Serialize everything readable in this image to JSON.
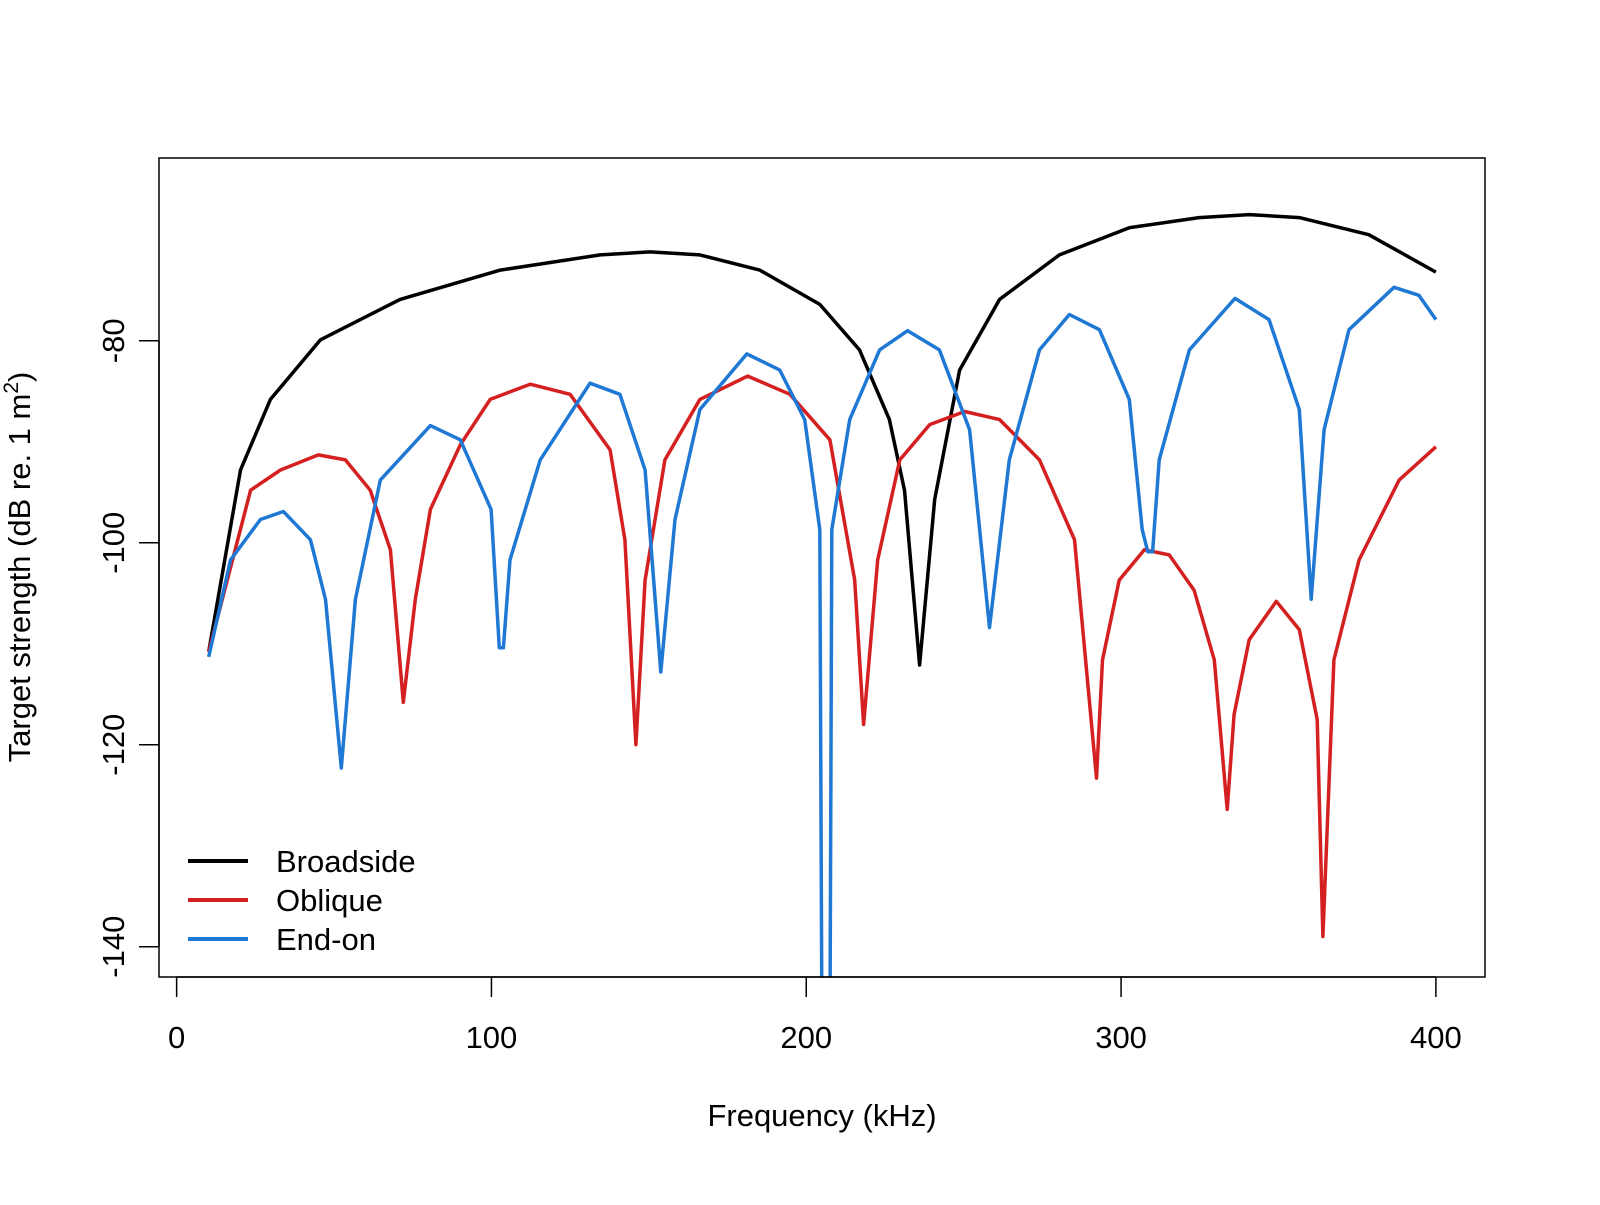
{
  "chart_data": {
    "type": "line",
    "title": "",
    "xlabel": "Frequency (kHz)",
    "ylabel": "Target strength (dB re. 1 m",
    "ylabel_sup": "2",
    "ylabel_close": ")",
    "xlim": [
      -5.6,
      415.6
    ],
    "ylim": [
      -143.0,
      -61.9
    ],
    "xticks": [
      0,
      100,
      200,
      300,
      400
    ],
    "xtick_labels": [
      "0",
      "100",
      "200",
      "300",
      "400"
    ],
    "yticks": [
      -80,
      -100,
      -120,
      -140
    ],
    "ytick_labels": [
      "-80",
      "-100",
      "-120",
      "-140"
    ],
    "grid": false,
    "legend_position": "bottom-left",
    "series": [
      {
        "name": "Broadside",
        "color": "#000000",
        "points": [
          [
            10.2,
            -110.8
          ],
          [
            20.3,
            -92.8
          ],
          [
            29.8,
            -85.8
          ],
          [
            45.7,
            -79.9
          ],
          [
            71,
            -75.9
          ],
          [
            102.8,
            -73.0
          ],
          [
            134.5,
            -71.5
          ],
          [
            150.4,
            -71.2
          ],
          [
            166.2,
            -71.5
          ],
          [
            185.2,
            -73.0
          ],
          [
            204.3,
            -76.4
          ],
          [
            216.9,
            -80.9
          ],
          [
            226.4,
            -87.8
          ],
          [
            231.2,
            -94.8
          ],
          [
            236,
            -112.1
          ],
          [
            240.8,
            -95.7
          ],
          [
            248.7,
            -82.9
          ],
          [
            261.4,
            -75.9
          ],
          [
            280.4,
            -71.5
          ],
          [
            302.6,
            -68.8
          ],
          [
            324.8,
            -67.8
          ],
          [
            340.7,
            -67.5
          ],
          [
            356.6,
            -67.8
          ],
          [
            378.7,
            -69.5
          ],
          [
            400,
            -73.2
          ]
        ]
      },
      {
        "name": "Oblique",
        "color": "#d42020",
        "points": [
          [
            10.2,
            -110.8
          ],
          [
            23.5,
            -94.8
          ],
          [
            33,
            -92.8
          ],
          [
            45,
            -91.3
          ],
          [
            53.6,
            -91.8
          ],
          [
            61.5,
            -94.8
          ],
          [
            67.9,
            -100.7
          ],
          [
            72,
            -115.8
          ],
          [
            75.8,
            -105.6
          ],
          [
            80.6,
            -96.7
          ],
          [
            90.1,
            -90.3
          ],
          [
            99.6,
            -85.8
          ],
          [
            112.3,
            -84.3
          ],
          [
            125,
            -85.3
          ],
          [
            137.7,
            -90.8
          ],
          [
            142.4,
            -99.7
          ],
          [
            145.9,
            -120
          ],
          [
            148.8,
            -103.7
          ],
          [
            155.1,
            -91.8
          ],
          [
            166.2,
            -85.8
          ],
          [
            181.4,
            -83.5
          ],
          [
            194.8,
            -85.3
          ],
          [
            207.5,
            -89.8
          ],
          [
            215.4,
            -103.7
          ],
          [
            218.2,
            -118
          ],
          [
            222.7,
            -101.7
          ],
          [
            229.7,
            -91.8
          ],
          [
            239.2,
            -88.3
          ],
          [
            250.3,
            -87.0
          ],
          [
            261.4,
            -87.8
          ],
          [
            274.1,
            -91.8
          ],
          [
            285.2,
            -99.7
          ],
          [
            292.2,
            -123.3
          ],
          [
            294.1,
            -111.6
          ],
          [
            299.4,
            -103.7
          ],
          [
            307.4,
            -100.7
          ],
          [
            315.3,
            -101.2
          ],
          [
            323.2,
            -104.7
          ],
          [
            329.6,
            -111.6
          ],
          [
            333.7,
            -126.4
          ],
          [
            335.9,
            -117
          ],
          [
            340.7,
            -109.6
          ],
          [
            349.3,
            -105.8
          ],
          [
            356.6,
            -108.6
          ],
          [
            362.3,
            -117.5
          ],
          [
            364.1,
            -139
          ],
          [
            367.6,
            -111.6
          ],
          [
            375.6,
            -101.7
          ],
          [
            388.3,
            -93.8
          ],
          [
            400,
            -90.5
          ]
        ]
      },
      {
        "name": "End-on",
        "color": "#1e78d4",
        "points": [
          [
            10.2,
            -111.3
          ],
          [
            17.1,
            -101.7
          ],
          [
            26.6,
            -97.7
          ],
          [
            33.9,
            -96.9
          ],
          [
            42.5,
            -99.7
          ],
          [
            47.3,
            -105.6
          ],
          [
            52.3,
            -122.3
          ],
          [
            56.8,
            -105.6
          ],
          [
            64.7,
            -93.8
          ],
          [
            80.6,
            -88.4
          ],
          [
            90.1,
            -89.8
          ],
          [
            99.9,
            -96.7
          ],
          [
            102.5,
            -110.4
          ],
          [
            103.8,
            -110.4
          ],
          [
            105.9,
            -101.7
          ],
          [
            115.5,
            -91.8
          ],
          [
            131.3,
            -84.2
          ],
          [
            140.8,
            -85.3
          ],
          [
            148.8,
            -92.8
          ],
          [
            153.8,
            -112.8
          ],
          [
            158.3,
            -97.7
          ],
          [
            166.2,
            -86.8
          ],
          [
            181.1,
            -81.3
          ],
          [
            191.6,
            -82.9
          ],
          [
            199.5,
            -87.8
          ],
          [
            204.3,
            -98.7
          ],
          [
            205,
            -150
          ],
          [
            207.5,
            -150
          ],
          [
            208.1,
            -98.7
          ],
          [
            213.8,
            -87.8
          ],
          [
            223.3,
            -80.9
          ],
          [
            232.2,
            -79
          ],
          [
            242.3,
            -80.9
          ],
          [
            251.9,
            -88.8
          ],
          [
            258.2,
            -108.4
          ],
          [
            264.5,
            -91.8
          ],
          [
            274.1,
            -80.9
          ],
          [
            283.6,
            -77.4
          ],
          [
            293.1,
            -78.9
          ],
          [
            302.6,
            -85.8
          ],
          [
            306.7,
            -98.7
          ],
          [
            308.5,
            -100.9
          ],
          [
            310,
            -100.9
          ],
          [
            312.1,
            -91.8
          ],
          [
            321.7,
            -80.9
          ],
          [
            336.2,
            -75.8
          ],
          [
            347,
            -77.9
          ],
          [
            356.6,
            -86.8
          ],
          [
            360.4,
            -105.6
          ],
          [
            364.5,
            -88.8
          ],
          [
            372.4,
            -78.9
          ],
          [
            386.7,
            -74.7
          ],
          [
            394.6,
            -75.5
          ],
          [
            400,
            -77.9
          ]
        ]
      }
    ]
  }
}
